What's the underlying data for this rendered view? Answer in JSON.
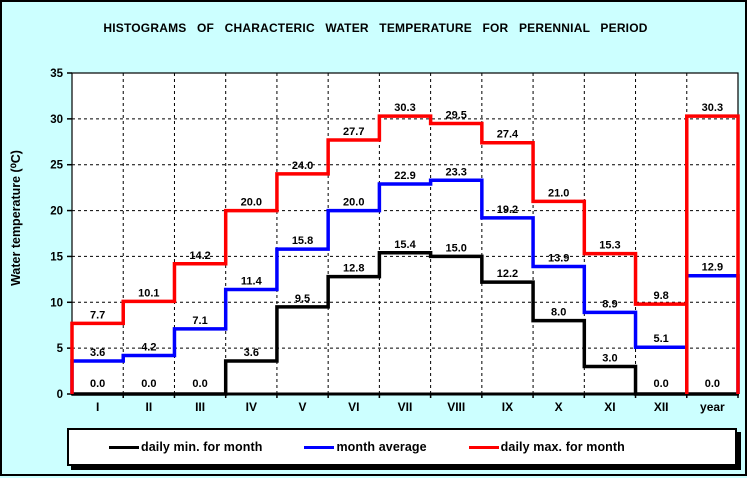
{
  "window": {
    "background_color": "#CCFFFF",
    "plot_background_color": "#FFFFFF",
    "border_color": "#000000"
  },
  "chart_data": {
    "type": "line",
    "subtype": "step-histogram",
    "title": "HISTOGRAMS OF CHARACTERIC WATER TEMPERATURE FOR PERENNIAL PERIOD",
    "xlabel": "",
    "ylabel": "Water temperature (⁰C)",
    "ylim": [
      0,
      35
    ],
    "yticks": [
      0,
      5,
      10,
      15,
      20,
      25,
      30,
      35
    ],
    "grid": true,
    "grid_style": "dashed",
    "legend_position": "bottom",
    "categories": [
      "I",
      "II",
      "III",
      "IV",
      "V",
      "VI",
      "VII",
      "VIII",
      "IX",
      "X",
      "XI",
      "XII",
      "year"
    ],
    "series": [
      {
        "name": "daily min. for month",
        "color": "#000000",
        "values": [
          0.0,
          0.0,
          0.0,
          3.6,
          9.5,
          12.8,
          15.4,
          15.0,
          12.2,
          8.0,
          3.0,
          0.0,
          0.0
        ]
      },
      {
        "name": "month average",
        "color": "#0000FF",
        "values": [
          3.6,
          4.2,
          7.1,
          11.4,
          15.8,
          20.0,
          22.9,
          23.3,
          19.2,
          13.9,
          8.9,
          5.1,
          12.9
        ]
      },
      {
        "name": "daily max. for month",
        "color": "#FF0000",
        "values": [
          7.7,
          10.1,
          14.2,
          20.0,
          24.0,
          27.7,
          30.3,
          29.5,
          27.4,
          21.0,
          15.3,
          9.8,
          30.3
        ]
      }
    ]
  }
}
